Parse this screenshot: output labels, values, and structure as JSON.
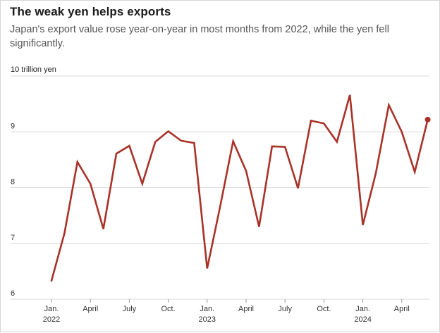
{
  "chart_data": {
    "type": "line",
    "title": "The weak yen helps exports",
    "subtitle": "Japan's export value rose year-on-year in most months from 2022, while the yen fell significantly.",
    "unit_label": "10 trillion yen",
    "ylim": [
      6,
      10
    ],
    "yticks": [
      6,
      7,
      8,
      9
    ],
    "grid": true,
    "line_color": "#a83228",
    "x_tick_labels": [
      {
        "index": 0,
        "month": "Jan.",
        "year": "2022"
      },
      {
        "index": 3,
        "month": "April",
        "year": ""
      },
      {
        "index": 6,
        "month": "July",
        "year": ""
      },
      {
        "index": 9,
        "month": "Oct.",
        "year": ""
      },
      {
        "index": 12,
        "month": "Jan.",
        "year": "2023"
      },
      {
        "index": 15,
        "month": "April",
        "year": ""
      },
      {
        "index": 18,
        "month": "July",
        "year": ""
      },
      {
        "index": 21,
        "month": "Oct.",
        "year": ""
      },
      {
        "index": 24,
        "month": "Jan.",
        "year": "2024"
      },
      {
        "index": 27,
        "month": "April",
        "year": ""
      }
    ],
    "series": [
      {
        "x": [
          "2022-01",
          "2022-02",
          "2022-03",
          "2022-04",
          "2022-05",
          "2022-06",
          "2022-07",
          "2022-08",
          "2022-09",
          "2022-10",
          "2022-11",
          "2022-12",
          "2023-01",
          "2023-02",
          "2023-03",
          "2023-04",
          "2023-05",
          "2023-06",
          "2023-07",
          "2023-08",
          "2023-09",
          "2023-10",
          "2023-11",
          "2023-12",
          "2024-01",
          "2024-02",
          "2024-03",
          "2024-04",
          "2024-05",
          "2024-06"
        ],
        "values": [
          6.33,
          7.18,
          8.46,
          8.07,
          7.26,
          8.61,
          8.75,
          8.07,
          8.82,
          9.01,
          8.84,
          8.8,
          6.55,
          7.66,
          8.83,
          8.3,
          7.3,
          8.74,
          8.73,
          7.99,
          9.2,
          9.15,
          8.82,
          9.66,
          7.33,
          8.26,
          9.48,
          9.0,
          8.28,
          9.22
        ]
      }
    ]
  }
}
